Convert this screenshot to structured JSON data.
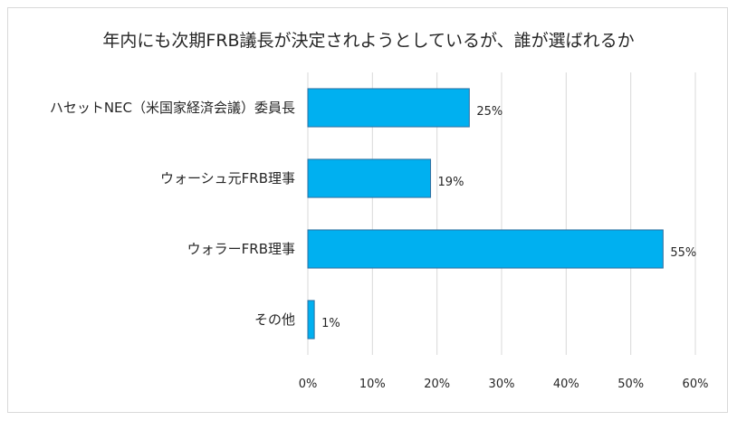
{
  "chart_data": {
    "type": "bar",
    "orientation": "horizontal",
    "title": "年内にも次期FRB議長が決定されようとしているが、誰が選ばれるか",
    "categories": [
      "ハセットNEC（米国家経済会議）委員長",
      "ウォーシュ元FRB理事",
      "ウォラーFRB理事",
      "その他"
    ],
    "values": [
      25,
      19,
      55,
      1
    ],
    "value_labels": [
      "25%",
      "19%",
      "55%",
      "1%"
    ],
    "xlim": [
      0,
      60
    ],
    "x_ticks": [
      "0%",
      "10%",
      "20%",
      "30%",
      "40%",
      "50%",
      "60%"
    ],
    "grid": true,
    "legend": "none",
    "colors": {
      "bar": "#00b0f0",
      "bar_edge": "#2f6e9f",
      "grid": "#d9d9d9"
    }
  }
}
